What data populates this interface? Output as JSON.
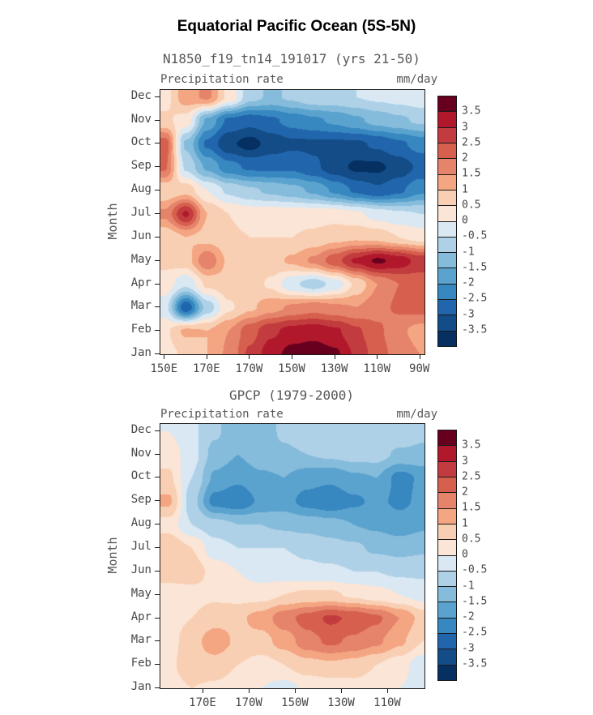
{
  "title": "Equatorial Pacific Ocean (5S-5N)",
  "colormap": {
    "levels": [
      -3.5,
      -3,
      -2.5,
      -2,
      -1.5,
      -1,
      -0.5,
      0,
      0.5,
      1,
      1.5,
      2,
      2.5,
      3,
      3.5
    ],
    "colors": [
      "#053061",
      "#134c87",
      "#2166ac",
      "#3787c0",
      "#5ba3cf",
      "#85bcdb",
      "#aed1e7",
      "#d9e8f3",
      "#fbe5d6",
      "#f9cfb3",
      "#f4a582",
      "#e5836b",
      "#d6604d",
      "#c23b3e",
      "#b2182b",
      "#67001f"
    ]
  },
  "colorbar_tick_labels": [
    "3.5",
    "3",
    "2.5",
    "2",
    "1.5",
    "1",
    "0.5",
    "0",
    "-0.5",
    "-1",
    "-1.5",
    "-2",
    "-2.5",
    "-3",
    "-3.5"
  ],
  "months_display": [
    "Dec",
    "Nov",
    "Oct",
    "Sep",
    "Aug",
    "Jul",
    "Jun",
    "May",
    "Apr",
    "Mar",
    "Feb",
    "Jan"
  ],
  "chart_data": [
    {
      "type": "heatmap",
      "subtitle": "N1850_f19_tn14_191017 (yrs 21-50)",
      "left_header": "Precipitation rate",
      "right_header": "mm/day",
      "ylabel": "Month",
      "months": [
        "Jan",
        "Feb",
        "Mar",
        "Apr",
        "May",
        "Jun",
        "Jul",
        "Aug",
        "Sep",
        "Oct",
        "Nov",
        "Dec"
      ],
      "month_range": [
        1,
        12.3
      ],
      "x_range": [
        148,
        272
      ],
      "x_ticks": [
        {
          "value": 150,
          "label": "150E"
        },
        {
          "value": 170,
          "label": "170E"
        },
        {
          "value": 190,
          "label": "170W"
        },
        {
          "value": 210,
          "label": "150W"
        },
        {
          "value": 230,
          "label": "130W"
        },
        {
          "value": 250,
          "label": "110W"
        },
        {
          "value": 270,
          "label": "90W"
        }
      ],
      "lon": [
        150,
        160,
        170,
        180,
        190,
        200,
        210,
        220,
        230,
        240,
        250,
        260,
        270
      ],
      "values": [
        [
          0.3,
          0.6,
          1.0,
          1.6,
          2.6,
          3.3,
          3.7,
          3.8,
          3.6,
          2.9,
          2.2,
          1.8,
          1.5
        ],
        [
          0.4,
          1.1,
          1.0,
          1.5,
          2.3,
          2.9,
          3.2,
          3.3,
          3.1,
          2.6,
          2.1,
          1.6,
          1.3
        ],
        [
          -0.3,
          -2.9,
          -0.8,
          0.4,
          0.9,
          1.3,
          1.6,
          1.8,
          1.6,
          1.5,
          1.8,
          2.1,
          2.2
        ],
        [
          0.3,
          -0.4,
          0.6,
          0.8,
          0.8,
          0.4,
          -0.4,
          -0.8,
          -0.3,
          0.6,
          1.5,
          2.0,
          2.2
        ],
        [
          0.6,
          0.8,
          1.9,
          0.9,
          0.6,
          0.8,
          1.1,
          1.6,
          2.3,
          3.1,
          3.6,
          3.3,
          2.8
        ],
        [
          0.6,
          1.0,
          0.8,
          0.6,
          0.5,
          0.5,
          0.5,
          0.6,
          0.8,
          0.9,
          0.8,
          0.5,
          0.3
        ],
        [
          1.6,
          3.1,
          1.0,
          0.5,
          0.3,
          0.3,
          0.3,
          0.3,
          0.3,
          0.1,
          -0.2,
          -0.4,
          -0.5
        ],
        [
          0.6,
          0.8,
          0.0,
          -0.6,
          -0.9,
          -1.1,
          -1.3,
          -1.6,
          -2.1,
          -2.6,
          -2.9,
          -2.6,
          -2.1
        ],
        [
          2.1,
          -0.6,
          -1.6,
          -2.3,
          -2.6,
          -2.6,
          -2.6,
          -2.9,
          -3.3,
          -3.6,
          -3.6,
          -3.3,
          -2.9
        ],
        [
          2.3,
          -1.1,
          -2.6,
          -3.4,
          -3.7,
          -3.3,
          -3.1,
          -3.1,
          -3.1,
          -3.1,
          -2.9,
          -2.6,
          -2.3
        ],
        [
          0.6,
          0.3,
          -1.6,
          -2.6,
          -2.8,
          -2.6,
          -2.3,
          -2.1,
          -1.9,
          -1.6,
          -1.3,
          -1.1,
          -0.9
        ],
        [
          0.3,
          1.3,
          1.6,
          0.4,
          -0.8,
          -1.1,
          -0.9,
          -0.6,
          -0.6,
          -0.5,
          -0.4,
          -0.3,
          -0.2
        ]
      ]
    },
    {
      "type": "heatmap",
      "subtitle": "GPCP (1979-2000)",
      "left_header": "Precipitation rate",
      "right_header": "mm/day",
      "ylabel": "Month",
      "months": [
        "Jan",
        "Feb",
        "Mar",
        "Apr",
        "May",
        "Jun",
        "Jul",
        "Aug",
        "Sep",
        "Oct",
        "Nov",
        "Dec"
      ],
      "month_range": [
        1,
        12.3
      ],
      "x_range": [
        151.4,
        265.8
      ],
      "x_ticks": [
        {
          "value": 170,
          "label": "170E"
        },
        {
          "value": 190,
          "label": "170W"
        },
        {
          "value": 210,
          "label": "150W"
        },
        {
          "value": 230,
          "label": "130W"
        },
        {
          "value": 250,
          "label": "110W"
        }
      ],
      "lon": [
        155,
        165,
        175,
        185,
        195,
        205,
        215,
        225,
        235,
        245,
        255,
        265
      ],
      "values": [
        [
          0.3,
          0.5,
          0.4,
          0.2,
          0.0,
          -0.2,
          0.1,
          0.2,
          0.3,
          0.2,
          0.0,
          -0.2
        ],
        [
          0.4,
          0.8,
          0.8,
          0.5,
          0.3,
          0.5,
          0.8,
          0.9,
          0.8,
          0.5,
          0.2,
          -0.3
        ],
        [
          0.3,
          0.8,
          1.3,
          0.9,
          0.8,
          1.2,
          1.8,
          2.1,
          1.9,
          1.6,
          1.1,
          0.5
        ],
        [
          0.3,
          0.5,
          0.8,
          0.9,
          1.2,
          1.8,
          2.2,
          2.6,
          2.4,
          2.1,
          1.5,
          0.8
        ],
        [
          0.2,
          0.3,
          0.4,
          0.3,
          0.3,
          0.5,
          0.6,
          0.6,
          0.4,
          0.2,
          0.0,
          -0.2
        ],
        [
          0.8,
          0.8,
          0.3,
          0.0,
          -0.3,
          -0.3,
          -0.4,
          -0.4,
          -0.5,
          -0.5,
          -0.6,
          -0.6
        ],
        [
          0.9,
          0.5,
          -0.3,
          -0.5,
          -0.5,
          -0.5,
          -0.6,
          -0.8,
          -0.9,
          -1.1,
          -1.2,
          -1.1
        ],
        [
          0.3,
          -0.5,
          -0.8,
          -1.0,
          -1.0,
          -1.1,
          -1.2,
          -1.3,
          -1.5,
          -1.6,
          -1.8,
          -1.6
        ],
        [
          1.1,
          -0.8,
          -2.2,
          -2.4,
          -1.9,
          -1.8,
          -2.2,
          -2.4,
          -2.1,
          -1.9,
          -2.1,
          -1.9
        ],
        [
          0.6,
          -0.5,
          -1.6,
          -1.9,
          -1.6,
          -1.5,
          -1.8,
          -1.9,
          -1.6,
          -1.5,
          -2.2,
          -1.9
        ],
        [
          0.3,
          -0.3,
          -1.2,
          -1.5,
          -1.2,
          -1.1,
          -1.0,
          -0.9,
          -0.8,
          -0.8,
          -1.1,
          -1.1
        ],
        [
          0.0,
          -0.4,
          -0.9,
          -1.4,
          -1.3,
          -0.9,
          -0.6,
          -0.5,
          -0.5,
          -0.6,
          -0.6,
          -0.9
        ]
      ]
    }
  ]
}
